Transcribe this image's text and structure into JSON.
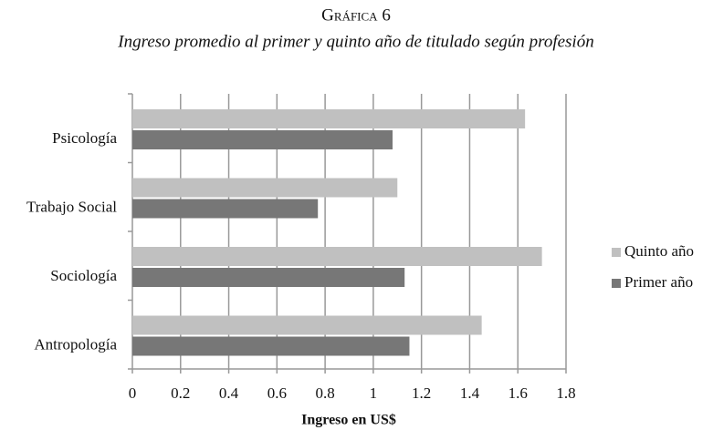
{
  "chart_data": {
    "type": "bar",
    "orientation": "horizontal",
    "title": "Gráfica 6",
    "subtitle": "Ingreso promedio al primer y quinto año de titulado según profesión",
    "x_label": "Ingreso en US$",
    "categories": [
      "Psicología",
      "Trabajo Social",
      "Sociología",
      "Antropología"
    ],
    "series": [
      {
        "name": "Quinto año",
        "color": "#c0c0c0",
        "values": [
          1.63,
          1.1,
          1.7,
          1.45
        ]
      },
      {
        "name": "Primer año",
        "color": "#777777",
        "values": [
          1.08,
          0.77,
          1.13,
          1.15
        ]
      }
    ],
    "xlim": [
      0,
      1.8
    ],
    "xticks": [
      0,
      0.2,
      0.4,
      0.6,
      0.8,
      1,
      1.2,
      1.4,
      1.6,
      1.8
    ],
    "grid": true,
    "legend": "right"
  }
}
